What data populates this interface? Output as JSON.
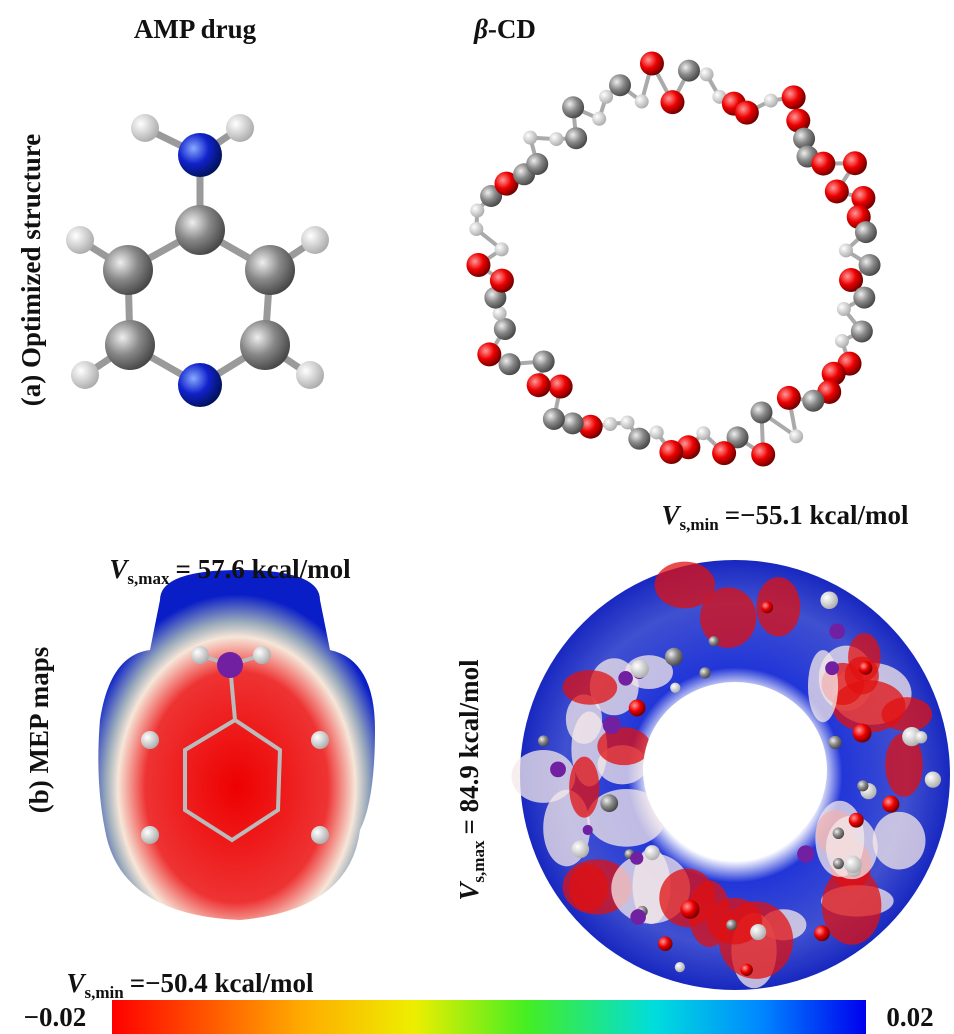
{
  "header": {
    "left": "AMP drug",
    "right_symbol": "β",
    "right": "-CD"
  },
  "rows": [
    {
      "label": "(a) Optimized structure"
    },
    {
      "label": "(b) MEP maps"
    }
  ],
  "annotations": [
    {
      "symbol": "V",
      "subscript": "s,max",
      "text": "= 57.6 kcal/mol"
    },
    {
      "symbol": "V",
      "subscript": "s,min",
      "text": "=−50.4 kcal/mol"
    },
    {
      "symbol": "V",
      "subscript": "s,min",
      "text": "=−55.1 kcal/mol"
    },
    {
      "symbol": "V",
      "subscript": "s,max",
      "text": "= 84.9 kcal/mol"
    }
  ],
  "colorbar": {
    "min": "−0.02",
    "max": "0.02"
  }
}
